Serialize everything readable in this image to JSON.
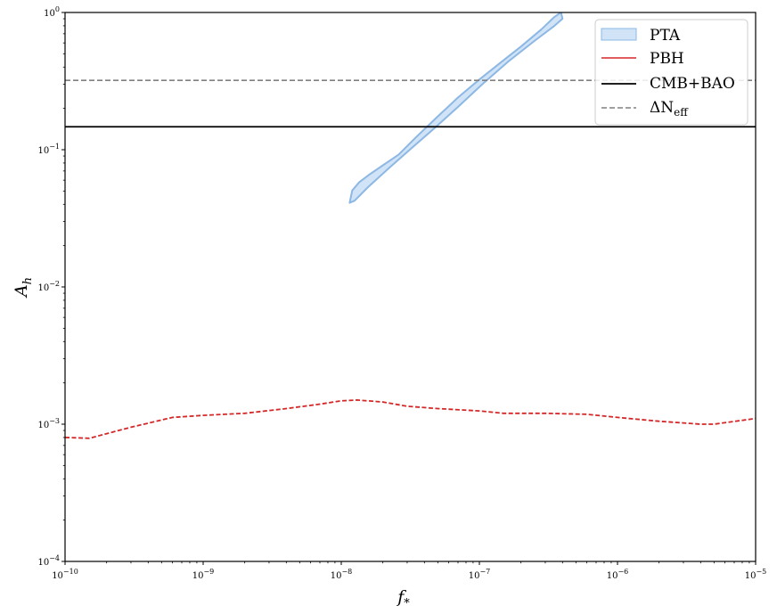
{
  "chart_data": {
    "type": "line",
    "title": "",
    "xlabel": "f",
    "xlabel_sub": "*",
    "ylabel": "A",
    "ylabel_sub": "h",
    "xscale": "log",
    "yscale": "log",
    "xlim": [
      1e-10,
      1e-05
    ],
    "ylim": [
      0.0001,
      1
    ],
    "grid": false,
    "legend_position": "top-right",
    "x_ticks": [
      {
        "value": 1e-10,
        "base": "10",
        "exp": "−10"
      },
      {
        "value": 1e-09,
        "base": "10",
        "exp": "−9"
      },
      {
        "value": 1e-08,
        "base": "10",
        "exp": "−8"
      },
      {
        "value": 1e-07,
        "base": "10",
        "exp": "−7"
      },
      {
        "value": 1e-06,
        "base": "10",
        "exp": "−6"
      },
      {
        "value": 1e-05,
        "base": "10",
        "exp": "−5"
      }
    ],
    "y_ticks": [
      {
        "value": 0.0001,
        "base": "10",
        "exp": "−4"
      },
      {
        "value": 0.001,
        "base": "10",
        "exp": "−3"
      },
      {
        "value": 0.01,
        "base": "10",
        "exp": "−2"
      },
      {
        "value": 0.1,
        "base": "10",
        "exp": "−1"
      },
      {
        "value": 1,
        "base": "10",
        "exp": "0"
      }
    ],
    "series": [
      {
        "name": "PTA",
        "type": "area",
        "color": "#d0e3f7",
        "edge_color": "#8db8e4",
        "polygon": [
          [
            1.15e-08,
            0.041
          ],
          [
            1.2e-08,
            0.0505
          ],
          [
            1.35e-08,
            0.058
          ],
          [
            1.6e-08,
            0.066
          ],
          [
            2e-08,
            0.077
          ],
          [
            2.6e-08,
            0.092
          ],
          [
            3.5e-08,
            0.124
          ],
          [
            5e-08,
            0.175
          ],
          [
            7e-08,
            0.24
          ],
          [
            1e-07,
            0.325
          ],
          [
            1.4e-07,
            0.425
          ],
          [
            2e-07,
            0.565
          ],
          [
            2.8e-07,
            0.75
          ],
          [
            3.5e-07,
            0.93
          ],
          [
            3.9e-07,
            1.0
          ],
          [
            4e-07,
            0.9
          ],
          [
            3.5e-07,
            0.8
          ],
          [
            2.5e-07,
            0.62
          ],
          [
            1.6e-07,
            0.435
          ],
          [
            1.05e-07,
            0.3
          ],
          [
            7e-08,
            0.205
          ],
          [
            4.6e-08,
            0.14
          ],
          [
            3.2e-08,
            0.102
          ],
          [
            2.2e-08,
            0.073
          ],
          [
            1.55e-08,
            0.053
          ],
          [
            1.25e-08,
            0.0425
          ]
        ]
      },
      {
        "name": "PBH",
        "type": "line",
        "linestyle": "dashed",
        "legend_linestyle": "solid",
        "color": "#d62728",
        "x": [
          1e-10,
          1.5e-10,
          3e-10,
          6e-10,
          1e-09,
          2e-09,
          4e-09,
          7e-09,
          1e-08,
          1.3e-08,
          2e-08,
          3e-08,
          5e-08,
          1e-07,
          1.5e-07,
          3e-07,
          6e-07,
          1e-06,
          2e-06,
          4e-06,
          5e-06,
          1e-05
        ],
        "y": [
          0.0008,
          0.00079,
          0.00095,
          0.00112,
          0.00116,
          0.0012,
          0.0013,
          0.0014,
          0.00148,
          0.0015,
          0.00145,
          0.00135,
          0.0013,
          0.00125,
          0.0012,
          0.0012,
          0.00118,
          0.00112,
          0.00105,
          0.001,
          0.001,
          0.0011
        ]
      },
      {
        "name": "CMB+BAO",
        "type": "hline",
        "linestyle": "solid",
        "color": "#000000",
        "y": 0.147
      },
      {
        "name": "ΔN",
        "name_sub": "eff",
        "type": "hline",
        "linestyle": "dashed",
        "color": "#808080",
        "y": 0.32
      }
    ]
  }
}
